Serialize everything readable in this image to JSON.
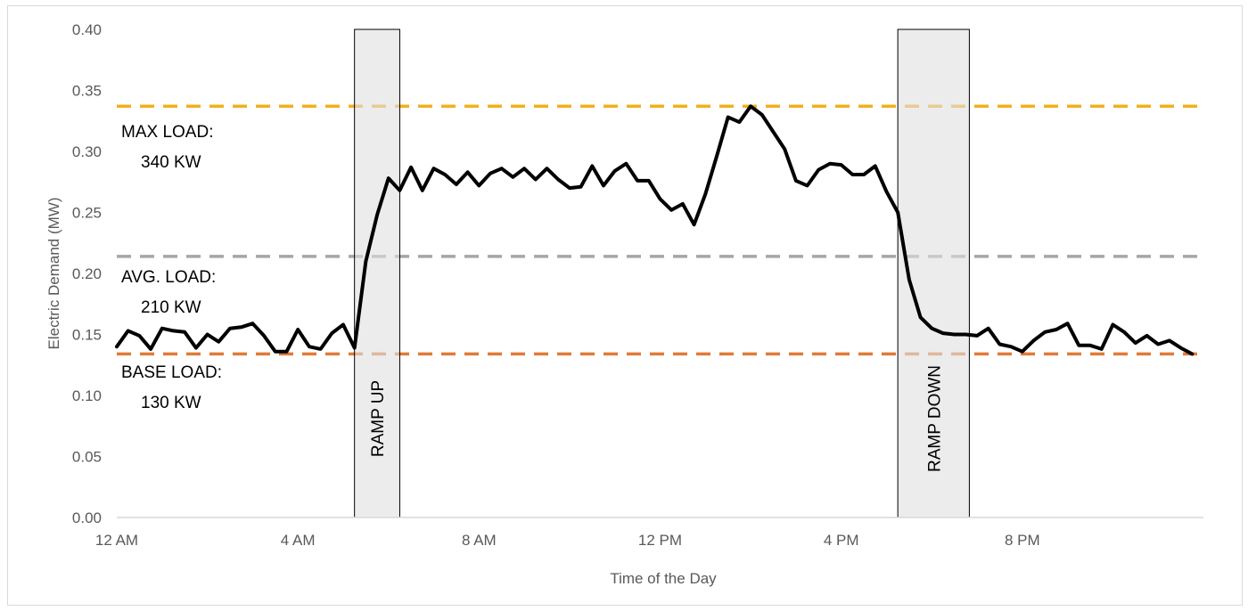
{
  "chart_data": {
    "type": "line",
    "title": "",
    "xlabel": "Time of the Day",
    "ylabel": "Electric Demand (MW)",
    "ylim": [
      0,
      0.4
    ],
    "xlim": [
      0,
      24
    ],
    "yticks": [
      "0.00",
      "0.05",
      "0.10",
      "0.15",
      "0.20",
      "0.25",
      "0.30",
      "0.35",
      "0.40"
    ],
    "xticks": [
      {
        "x": 0,
        "label": "12 AM"
      },
      {
        "x": 4,
        "label": "4 AM"
      },
      {
        "x": 8,
        "label": "8 AM"
      },
      {
        "x": 12,
        "label": "12 PM"
      },
      {
        "x": 16,
        "label": "4 PM"
      },
      {
        "x": 20,
        "label": "8 PM"
      }
    ],
    "grid": false,
    "legend": "none",
    "reference_lines": [
      {
        "name": "max",
        "value": 0.337,
        "color": "#f2b01e"
      },
      {
        "name": "avg",
        "value": 0.214,
        "color": "#a6a6a6"
      },
      {
        "name": "base",
        "value": 0.134,
        "color": "#e07b39"
      }
    ],
    "annotations": [
      {
        "line1": "MAX LOAD:",
        "line2": "340 KW"
      },
      {
        "line1": "AVG. LOAD:",
        "line2": "210 KW"
      },
      {
        "line1": "BASE LOAD:",
        "line2": "130 KW"
      }
    ],
    "shaded_regions": [
      {
        "x0": 5.25,
        "x1": 6.25,
        "label": "RAMP UP"
      },
      {
        "x0": 17.25,
        "x1": 18.83,
        "label": "RAMP DOWN"
      }
    ],
    "series": [
      {
        "color": "#000000",
        "x": [
          0,
          0.25,
          0.5,
          0.75,
          1,
          1.25,
          1.5,
          1.75,
          2,
          2.25,
          2.5,
          2.75,
          3,
          3.25,
          3.5,
          3.75,
          4,
          4.25,
          4.5,
          4.75,
          5,
          5.25,
          5.5,
          5.75,
          6,
          6.25,
          6.5,
          6.75,
          7,
          7.25,
          7.5,
          7.75,
          8,
          8.25,
          8.5,
          8.75,
          9,
          9.25,
          9.5,
          9.75,
          10,
          10.25,
          10.5,
          10.75,
          11,
          11.25,
          11.5,
          11.75,
          12,
          12.25,
          12.5,
          12.75,
          13,
          13.25,
          13.5,
          13.75,
          14,
          14.25,
          14.5,
          14.75,
          15,
          15.25,
          15.5,
          15.75,
          16,
          16.25,
          16.5,
          16.75,
          17,
          17.25,
          17.5,
          17.75,
          18,
          18.25,
          18.5,
          18.75,
          19,
          19.25,
          19.5,
          19.75,
          20,
          20.25,
          20.5,
          20.75,
          21,
          21.25,
          21.5,
          21.75,
          22,
          22.25,
          22.5,
          22.75,
          23,
          23.25,
          23.5,
          23.75
        ],
        "values": [
          0.14,
          0.153,
          0.149,
          0.138,
          0.155,
          0.153,
          0.152,
          0.139,
          0.15,
          0.144,
          0.155,
          0.156,
          0.159,
          0.149,
          0.136,
          0.136,
          0.154,
          0.14,
          0.138,
          0.151,
          0.158,
          0.139,
          0.21,
          0.248,
          0.278,
          0.268,
          0.287,
          0.268,
          0.286,
          0.281,
          0.273,
          0.283,
          0.272,
          0.282,
          0.286,
          0.279,
          0.286,
          0.277,
          0.286,
          0.277,
          0.27,
          0.271,
          0.288,
          0.272,
          0.284,
          0.29,
          0.276,
          0.276,
          0.261,
          0.252,
          0.257,
          0.24,
          0.265,
          0.296,
          0.328,
          0.324,
          0.337,
          0.33,
          0.316,
          0.302,
          0.276,
          0.272,
          0.285,
          0.29,
          0.289,
          0.281,
          0.281,
          0.288,
          0.267,
          0.25,
          0.195,
          0.164,
          0.155,
          0.151,
          0.15,
          0.15,
          0.149,
          0.155,
          0.142,
          0.14,
          0.136,
          0.145,
          0.152,
          0.154,
          0.159,
          0.141,
          0.141,
          0.138,
          0.158,
          0.152,
          0.143,
          0.149,
          0.142,
          0.145,
          0.139,
          0.134
        ]
      }
    ]
  }
}
